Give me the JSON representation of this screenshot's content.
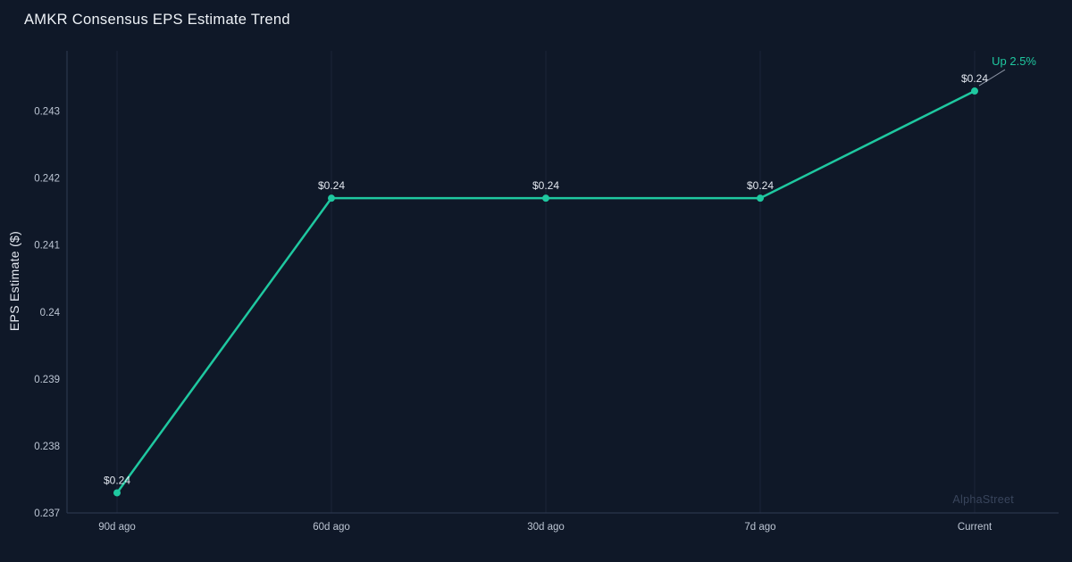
{
  "page": {
    "watermark": "AlphaStreet"
  },
  "colors": {
    "background": "#0f1828",
    "line": "#1fc8a0",
    "marker": "#1fc8a0",
    "grid": "#1b2539",
    "axis": "#2f3b54",
    "tick_text": "#bcc5d3",
    "point_label_text": "#e2e7ef",
    "annotation_text": "#1fc8a0",
    "connector": "#8b93a3",
    "watermark_text": "#39455c"
  },
  "chart_data": {
    "type": "line",
    "title": "AMKR Consensus EPS Estimate Trend",
    "xlabel": "",
    "ylabel": "EPS Estimate ($)",
    "categories": [
      "90d ago",
      "60d ago",
      "30d ago",
      "7d ago",
      "Current"
    ],
    "values": [
      0.2373,
      0.2417,
      0.2417,
      0.2417,
      0.2433
    ],
    "point_labels": [
      "$0.24",
      "$0.24",
      "$0.24",
      "$0.24",
      "$0.24"
    ],
    "ylim": [
      0.237,
      0.2439
    ],
    "yticks": [
      0.237,
      0.238,
      0.239,
      0.24,
      0.241,
      0.242,
      0.243
    ],
    "ytick_labels": [
      "0.237",
      "0.238",
      "0.239",
      "0.24",
      "0.241",
      "0.242",
      "0.243"
    ],
    "grid": "vertical",
    "legend": "none",
    "annotation": {
      "text": "Up 2.5%",
      "target": "Current"
    }
  }
}
